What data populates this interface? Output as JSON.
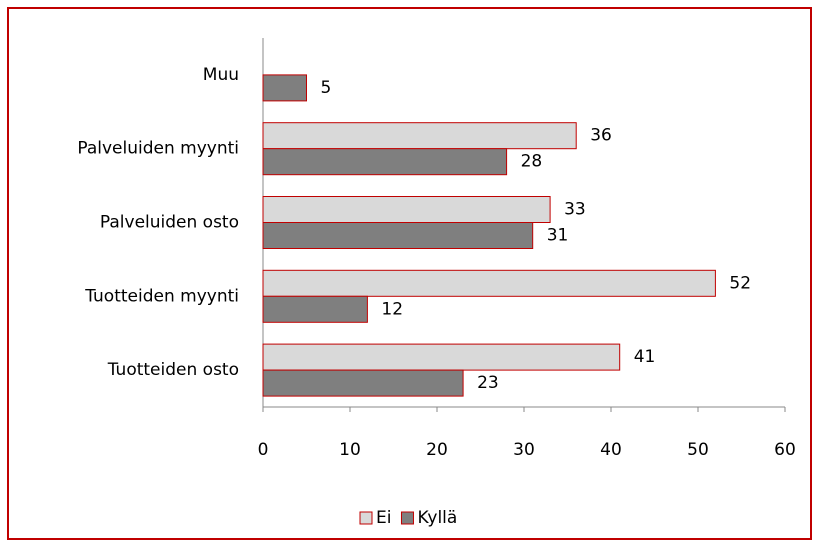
{
  "chart_data": {
    "type": "barh",
    "categories": [
      "Muu",
      "Palveluiden myynti",
      "Palveluiden osto",
      "Tuotteiden myynti",
      "Tuotteiden osto"
    ],
    "series": [
      {
        "name": "Ei",
        "color": "#d9d9d9",
        "values": [
          null,
          36,
          33,
          52,
          41
        ]
      },
      {
        "name": "Kyllä",
        "color": "#7f7f7f",
        "values": [
          5,
          28,
          31,
          12,
          23
        ]
      }
    ],
    "edgecolor": "#c00000",
    "xlim": [
      0,
      60
    ],
    "xticks": [
      0,
      10,
      20,
      30,
      40,
      50,
      60
    ],
    "grid": false,
    "legend": "bottom"
  }
}
